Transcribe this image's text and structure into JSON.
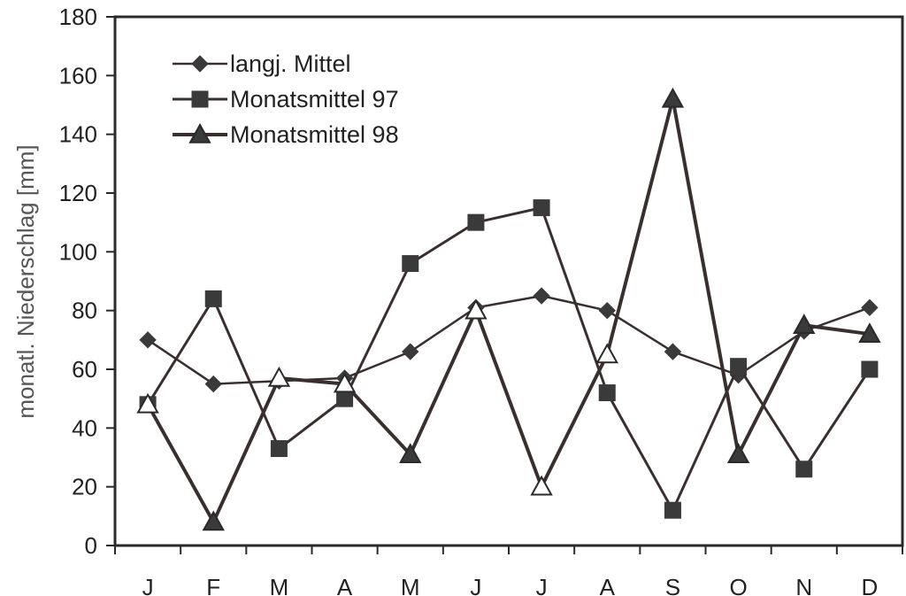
{
  "chart_data": {
    "type": "line",
    "title": "",
    "xlabel": "",
    "ylabel": "monatl. Niederschlag [mm]",
    "categories": [
      "J",
      "F",
      "M",
      "A",
      "M",
      "J",
      "J",
      "A",
      "S",
      "O",
      "N",
      "D"
    ],
    "ylim": [
      0,
      180
    ],
    "yticks": [
      0,
      20,
      40,
      60,
      80,
      100,
      120,
      140,
      160,
      180
    ],
    "grid": false,
    "legend_position": "top-left",
    "series": [
      {
        "name": "langj. Mittel",
        "marker": "diamond",
        "values": [
          70,
          55,
          56,
          57,
          66,
          81,
          85,
          80,
          66,
          58,
          73,
          81
        ]
      },
      {
        "name": "Monatsmittel 97",
        "marker": "square",
        "values": [
          48,
          84,
          33,
          50,
          96,
          110,
          115,
          52,
          12,
          61,
          26,
          60
        ]
      },
      {
        "name": "Monatsmittel 98",
        "marker": "triangle",
        "values": [
          48,
          8,
          57,
          55,
          31,
          80,
          20,
          65,
          152,
          31,
          75,
          72
        ]
      }
    ],
    "line_color": "#3a2f2f",
    "marker_color": "#3a3a3a",
    "axis_color": "#2a2a2a"
  }
}
